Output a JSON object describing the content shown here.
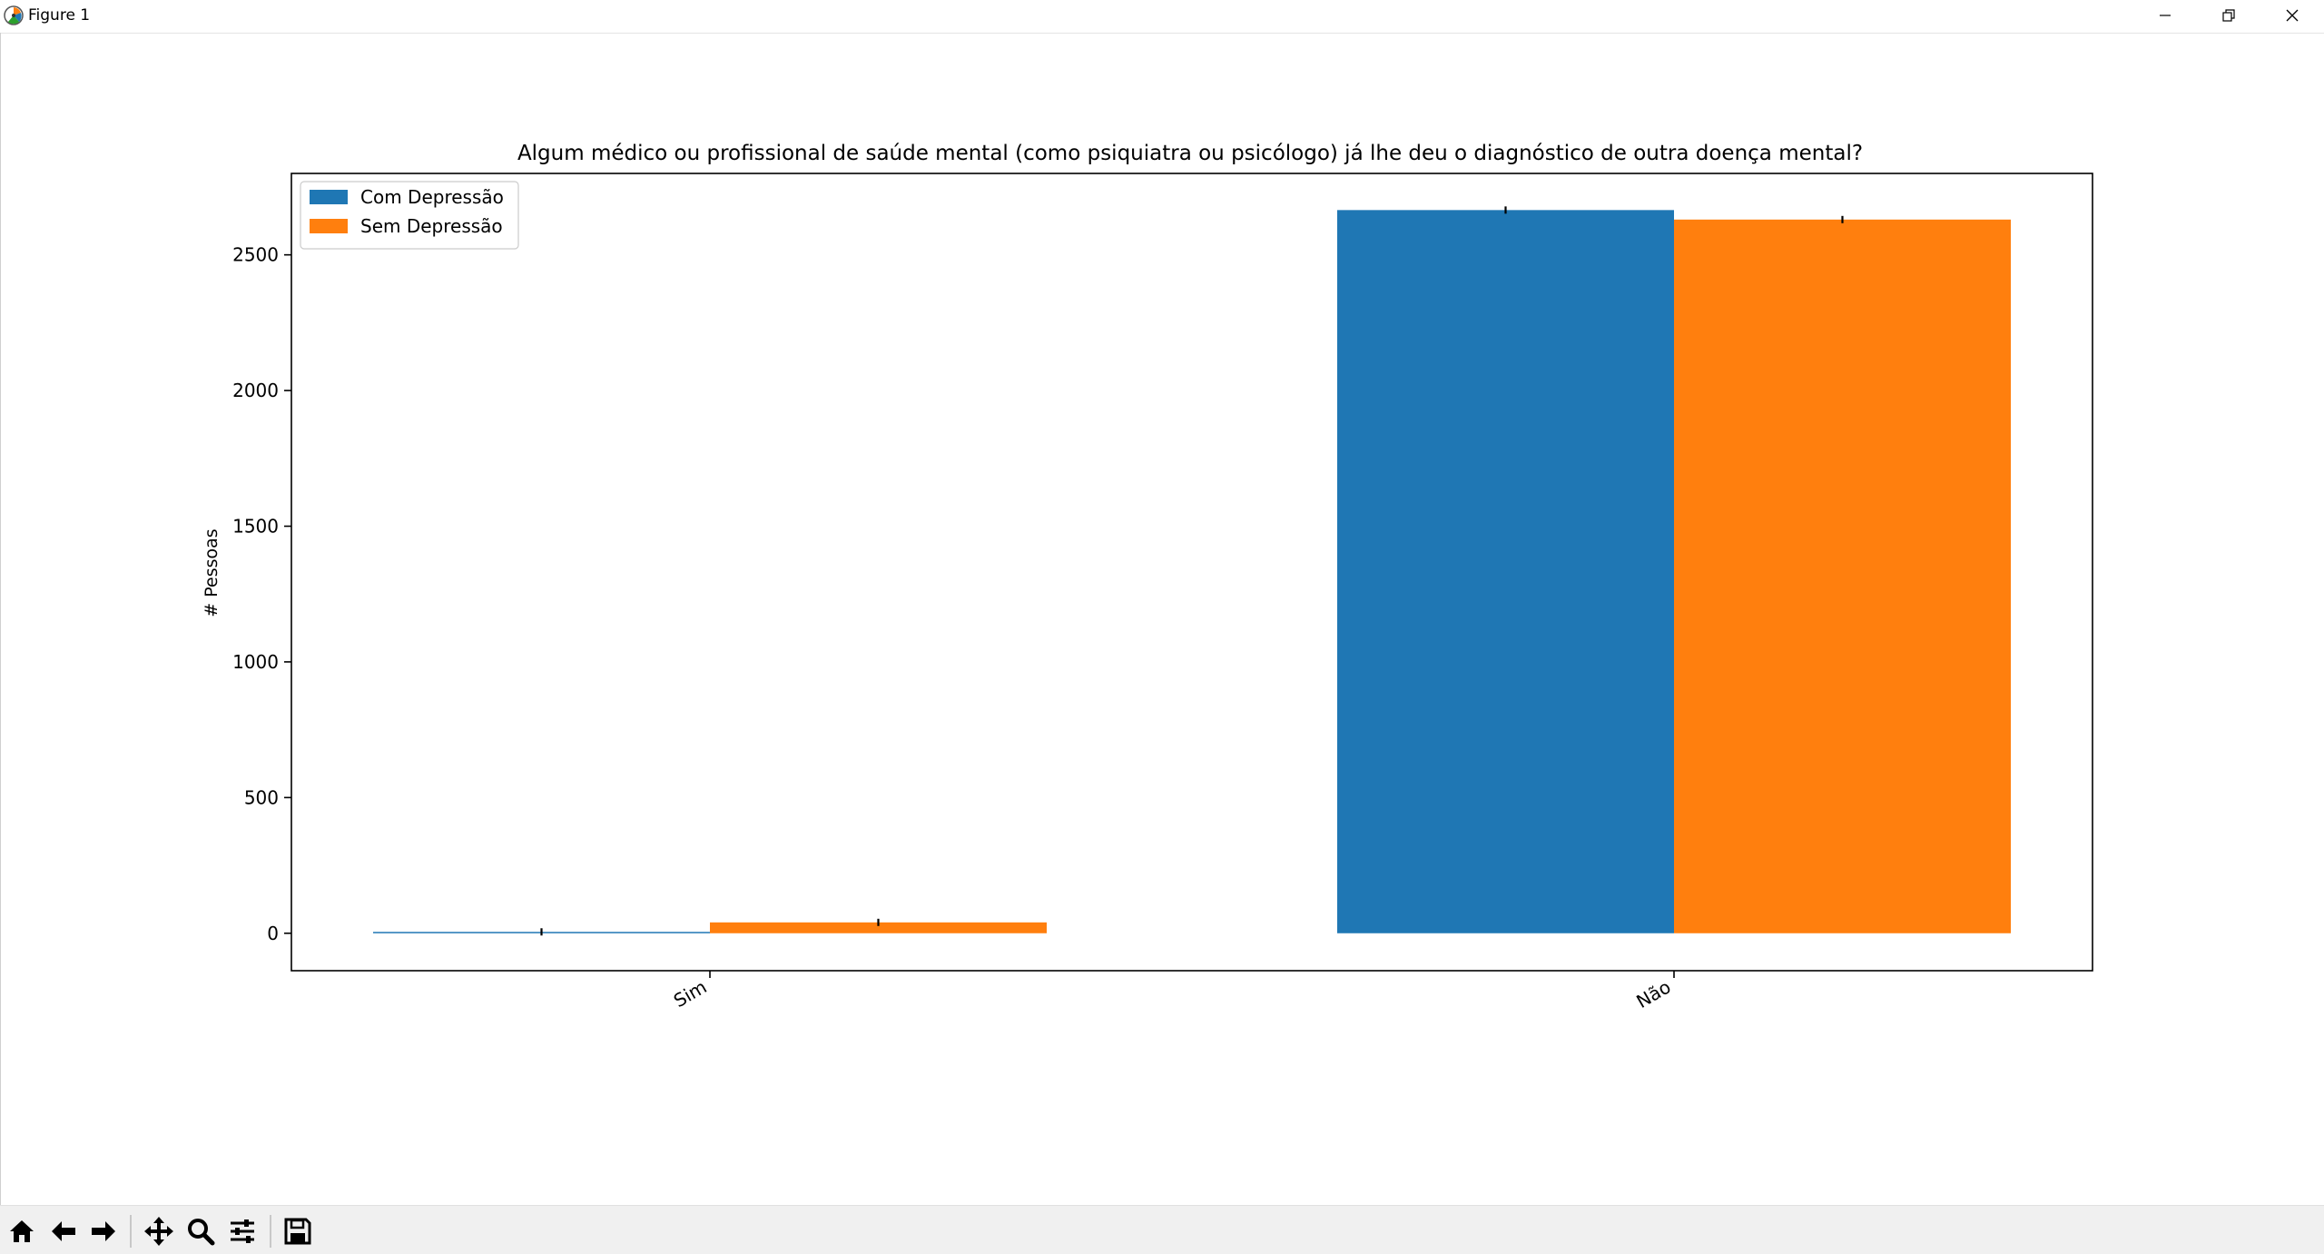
{
  "window": {
    "title": "Figure 1",
    "icons": {
      "app": "matplotlib-logo-icon",
      "minimize": "minimize-icon",
      "maximize": "restore-icon",
      "close": "close-icon"
    }
  },
  "toolbar": {
    "buttons": [
      {
        "name": "home-icon"
      },
      {
        "name": "back-arrow-icon"
      },
      {
        "name": "forward-arrow-icon"
      },
      {
        "name": "pan-icon"
      },
      {
        "name": "zoom-icon"
      },
      {
        "name": "configure-subplots-icon"
      },
      {
        "name": "save-icon"
      }
    ]
  },
  "chart_data": {
    "type": "bar",
    "title": "Algum médico ou profissional de saúde mental (como psiquiatra ou psicólogo) já lhe deu o diagnóstico de outra doença mental?",
    "xlabel": "",
    "ylabel": "# Pessoas",
    "categories": [
      "Sim",
      "Não"
    ],
    "series": [
      {
        "name": "Com Depressão",
        "color": "#1f77b4",
        "values": [
          5,
          2665
        ]
      },
      {
        "name": "Sem Depressão",
        "color": "#ff7f0e",
        "values": [
          40,
          2630
        ]
      }
    ],
    "error_bars": true,
    "yticks": [
      0,
      500,
      1000,
      1500,
      2000,
      2500
    ],
    "ylim": [
      -138,
      2800
    ],
    "legend": "upper left",
    "grid": false
  }
}
